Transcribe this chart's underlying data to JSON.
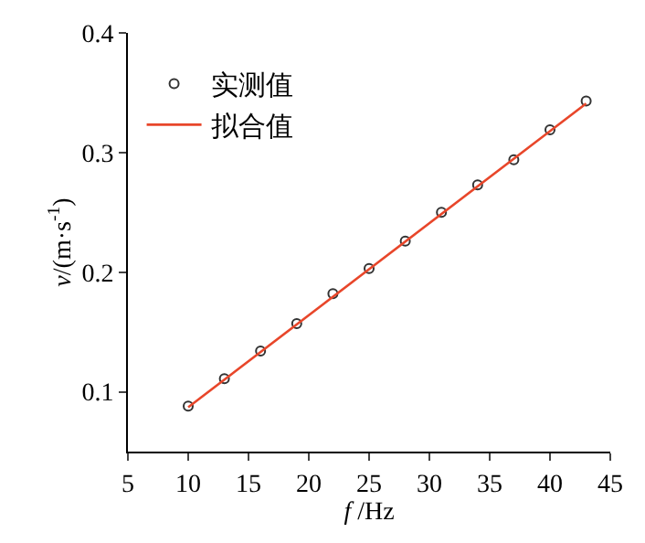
{
  "chart_data": {
    "type": "scatter",
    "xlabel": "f /Hz",
    "ylabel": "v/(m·s$^{-1}$)",
    "x": [
      10,
      13,
      16,
      19,
      22,
      25,
      28,
      31,
      34,
      37,
      40,
      43
    ],
    "series": [
      {
        "name": "实测值",
        "type": "scatter",
        "marker": "circle",
        "color": "#333333",
        "values": [
          0.088,
          0.111,
          0.134,
          0.157,
          0.182,
          0.203,
          0.226,
          0.25,
          0.273,
          0.294,
          0.319,
          0.343
        ]
      },
      {
        "name": "拟合值",
        "type": "line",
        "marker": "none",
        "color": "#e8462a",
        "x": [
          10,
          43
        ],
        "values": [
          0.087,
          0.341
        ]
      }
    ],
    "xlim": [
      5,
      45
    ],
    "xticks": [
      5,
      10,
      15,
      20,
      25,
      30,
      35,
      40,
      45
    ],
    "ylim": [
      0.05,
      0.4
    ],
    "yticks": [
      0.1,
      0.2,
      0.3,
      0.4
    ],
    "legend": "top left"
  }
}
